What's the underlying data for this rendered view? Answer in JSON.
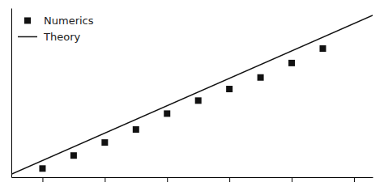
{
  "chart_data": {
    "type": "scatter",
    "series": [
      {
        "name": "Numerics",
        "type": "scatter",
        "marker": "square",
        "color": "#111111",
        "x": [
          0.5,
          1.0,
          1.5,
          2.0,
          2.5,
          3.0,
          3.5,
          4.0,
          4.5,
          5.0
        ],
        "values": [
          0.04,
          0.13,
          0.22,
          0.31,
          0.42,
          0.51,
          0.59,
          0.67,
          0.77,
          0.87
        ]
      },
      {
        "name": "Theory",
        "type": "line",
        "line_style": "solid",
        "color": "#111111",
        "x": [
          0.0,
          5.8
        ],
        "values": [
          0.0,
          1.1
        ]
      }
    ],
    "xlim": [
      0.0,
      5.8
    ],
    "ylim": [
      -0.02,
      1.15
    ],
    "xticks": [
      0.5,
      1.5,
      2.5,
      3.5,
      4.5,
      5.5
    ],
    "tick_labels": false,
    "legend": "upper left"
  }
}
